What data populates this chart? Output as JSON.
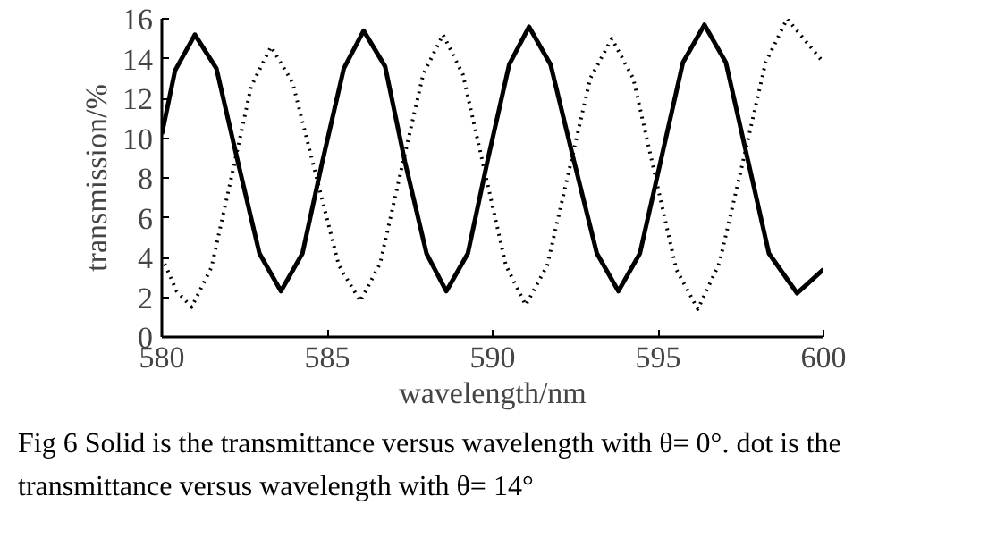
{
  "chart_data": {
    "type": "line",
    "xlabel": "wavelength/nm",
    "ylabel": "transmission/%",
    "xlim": [
      580,
      600
    ],
    "xticks": [
      580,
      585,
      590,
      595,
      600
    ],
    "ylim": [
      0,
      16
    ],
    "yticks": [
      0,
      2,
      4,
      6,
      8,
      10,
      12,
      14,
      16
    ],
    "grid": false,
    "annotations": [
      "Fig 6   Solid is the transmittance versus wavelength with θ= 0°. dot is the transmittance versus wavelength with θ= 14°"
    ],
    "series": [
      {
        "color": "#000000",
        "line_style": "solid",
        "x": [
          580,
          580.4,
          581.0,
          581.65,
          582.3,
          582.95,
          583.6,
          584.25,
          584.85,
          585.5,
          586.1,
          586.75,
          587.35,
          588.0,
          588.6,
          589.25,
          589.85,
          590.5,
          591.1,
          591.75,
          592.45,
          593.15,
          593.8,
          594.45,
          595.1,
          595.75,
          596.4,
          597.05,
          597.7,
          598.35,
          599.2,
          600
        ],
        "values": [
          10.2,
          13.4,
          15.2,
          13.5,
          8.8,
          4.2,
          2.3,
          4.2,
          8.8,
          13.5,
          15.4,
          13.6,
          8.8,
          4.2,
          2.3,
          4.2,
          8.9,
          13.7,
          15.6,
          13.7,
          8.9,
          4.2,
          2.3,
          4.2,
          9.0,
          13.8,
          15.7,
          13.8,
          9.0,
          4.2,
          2.2,
          3.4
        ]
      },
      {
        "color": "#000000",
        "line_style": "dotted",
        "x": [
          580,
          580.45,
          580.9,
          581.5,
          582.1,
          582.7,
          583.3,
          583.95,
          584.65,
          585.35,
          586.0,
          586.6,
          587.25,
          587.9,
          588.5,
          589.1,
          589.75,
          590.4,
          591.0,
          591.65,
          592.3,
          592.95,
          593.6,
          594.25,
          594.9,
          595.55,
          596.2,
          596.85,
          597.55,
          598.25,
          598.9,
          599.5,
          600
        ],
        "values": [
          4.0,
          2.3,
          1.5,
          3.5,
          8.0,
          12.6,
          14.6,
          12.8,
          8.2,
          3.6,
          1.8,
          3.7,
          8.5,
          13.2,
          15.2,
          13.2,
          8.4,
          3.6,
          1.6,
          3.6,
          8.3,
          13.0,
          15.0,
          13.0,
          8.2,
          3.4,
          1.4,
          3.7,
          8.7,
          13.8,
          16.0,
          14.8,
          13.8
        ]
      }
    ]
  }
}
